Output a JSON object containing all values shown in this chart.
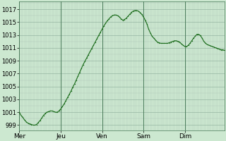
{
  "background_color": "#cce8d0",
  "plot_bg_color": "#cce8d0",
  "line_color": "#1a6b1a",
  "line_width": 0.8,
  "marker": "o",
  "marker_size": 1.0,
  "minor_grid_color": "#b0c8b8",
  "major_grid_color": "#8aaa98",
  "vline_color": "#4a7a5a",
  "ylabel_fontsize": 6,
  "xlabel_fontsize": 6.5,
  "yticks": [
    999,
    1001,
    1003,
    1005,
    1007,
    1009,
    1011,
    1013,
    1015,
    1017
  ],
  "ylim": [
    998.2,
    1018.2
  ],
  "day_labels": [
    "Mer",
    "Jeu",
    "Ven",
    "Sam",
    "Dim"
  ],
  "day_positions": [
    0,
    24,
    48,
    72,
    96
  ],
  "vline_positions": [
    0,
    24,
    48,
    72,
    96
  ],
  "x_values": [
    0,
    1,
    2,
    3,
    4,
    5,
    6,
    7,
    8,
    9,
    10,
    11,
    12,
    13,
    14,
    15,
    16,
    17,
    18,
    19,
    20,
    21,
    22,
    23,
    24,
    25,
    26,
    27,
    28,
    29,
    30,
    31,
    32,
    33,
    34,
    35,
    36,
    37,
    38,
    39,
    40,
    41,
    42,
    43,
    44,
    45,
    46,
    47,
    48,
    49,
    50,
    51,
    52,
    53,
    54,
    55,
    56,
    57,
    58,
    59,
    60,
    61,
    62,
    63,
    64,
    65,
    66,
    67,
    68,
    69,
    70,
    71,
    72,
    73,
    74,
    75,
    76,
    77,
    78,
    79,
    80,
    81,
    82,
    83,
    84,
    85,
    86,
    87,
    88,
    89,
    90,
    91,
    92,
    93,
    94,
    95,
    96,
    97,
    98,
    99,
    100,
    101,
    102,
    103,
    104,
    105,
    106,
    107,
    108,
    109,
    110,
    111,
    112,
    113,
    114,
    115,
    116,
    117,
    118,
    119
  ],
  "y_values": [
    1001.0,
    1000.5,
    1000.2,
    999.8,
    999.5,
    999.3,
    999.2,
    999.1,
    999.0,
    999.0,
    999.1,
    999.4,
    999.7,
    1000.1,
    1000.5,
    1000.8,
    1001.0,
    1001.1,
    1001.2,
    1001.2,
    1001.1,
    1001.0,
    1001.0,
    1001.2,
    1001.5,
    1001.9,
    1002.3,
    1002.8,
    1003.3,
    1003.8,
    1004.3,
    1004.9,
    1005.4,
    1006.0,
    1006.6,
    1007.2,
    1007.8,
    1008.4,
    1008.9,
    1009.4,
    1009.9,
    1010.4,
    1010.9,
    1011.4,
    1011.9,
    1012.4,
    1012.9,
    1013.4,
    1013.9,
    1014.4,
    1014.8,
    1015.2,
    1015.5,
    1015.8,
    1016.0,
    1016.1,
    1016.1,
    1016.0,
    1015.8,
    1015.5,
    1015.3,
    1015.4,
    1015.6,
    1015.9,
    1016.2,
    1016.5,
    1016.7,
    1016.8,
    1016.8,
    1016.7,
    1016.5,
    1016.2,
    1015.8,
    1015.3,
    1014.7,
    1013.9,
    1013.3,
    1012.8,
    1012.5,
    1012.2,
    1011.9,
    1011.8,
    1011.7,
    1011.7,
    1011.7,
    1011.7,
    1011.7,
    1011.8,
    1011.9,
    1012.0,
    1012.1,
    1012.1,
    1012.0,
    1011.9,
    1011.6,
    1011.4,
    1011.2,
    1011.2,
    1011.4,
    1011.7,
    1012.1,
    1012.5,
    1012.8,
    1013.1,
    1013.1,
    1012.9,
    1012.5,
    1012.0,
    1011.7,
    1011.5,
    1011.4,
    1011.3,
    1011.2,
    1011.1,
    1011.0,
    1010.9,
    1010.8,
    1010.7,
    1010.7,
    1010.6
  ]
}
